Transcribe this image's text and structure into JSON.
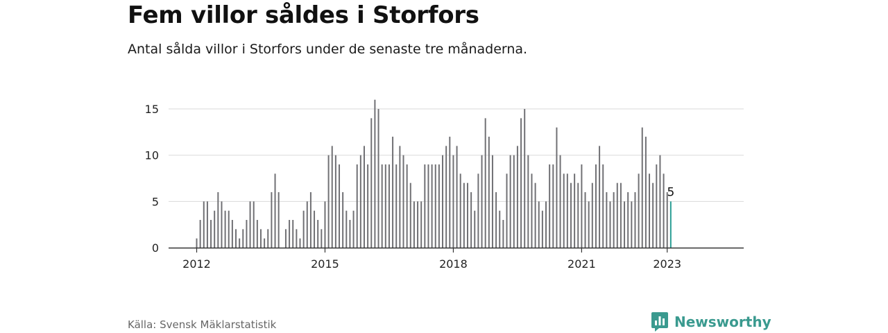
{
  "header": {
    "title": "Fem villor såldes i Storfors",
    "subtitle": "Antal sålda villor i Storfors under de senaste tre månaderna."
  },
  "footer": {
    "source": "Källa: Svensk Mäklarstatistik",
    "brand": "Newsworthy",
    "brand_icon": "newsworthy-chart-icon"
  },
  "colors": {
    "bar": "#707074",
    "highlight": "#2a9d94",
    "grid": "#d9d9d9",
    "axis": "#333333",
    "brand": "#3a9a8f"
  },
  "chart_data": {
    "type": "bar",
    "x_start": "2012-01",
    "x_step": "month",
    "values": [
      1,
      3,
      5,
      5,
      3,
      4,
      6,
      5,
      4,
      4,
      3,
      2,
      1,
      2,
      3,
      5,
      5,
      3,
      2,
      1,
      2,
      6,
      8,
      6,
      null,
      2,
      3,
      3,
      2,
      1,
      4,
      5,
      6,
      4,
      3,
      2,
      5,
      10,
      11,
      10,
      9,
      6,
      4,
      3,
      4,
      9,
      10,
      11,
      9,
      14,
      16,
      15,
      9,
      9,
      9,
      12,
      9,
      11,
      10,
      9,
      7,
      5,
      5,
      5,
      9,
      9,
      9,
      9,
      9,
      10,
      11,
      12,
      10,
      11,
      8,
      7,
      7,
      6,
      4,
      8,
      10,
      14,
      12,
      10,
      6,
      4,
      3,
      8,
      10,
      10,
      11,
      14,
      15,
      10,
      8,
      7,
      5,
      4,
      5,
      9,
      9,
      13,
      10,
      8,
      8,
      7,
      8,
      7,
      9,
      6,
      5,
      7,
      9,
      11,
      9,
      6,
      5,
      6,
      7,
      7,
      5,
      6,
      5,
      6,
      8,
      13,
      12,
      8,
      7,
      9,
      10,
      8,
      6,
      5
    ],
    "xticks": [
      "2012",
      "2015",
      "2018",
      "2021",
      "2023"
    ],
    "yticks": [
      0,
      5,
      10,
      15
    ],
    "ylim": [
      0,
      16
    ],
    "highlight_label": "5",
    "grid": true
  }
}
